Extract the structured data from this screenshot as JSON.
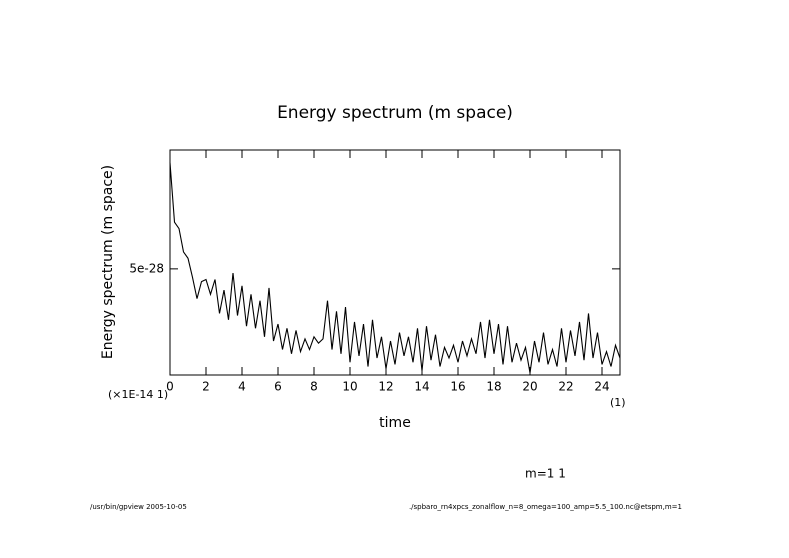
{
  "chart_data": {
    "type": "line",
    "title": "Energy spectrum (m space)",
    "y_label": "Energy spectrum (m space)",
    "x_label": "time",
    "x_scale_note": "(×1E-14 1)",
    "x_unit": "(1)",
    "annotation": "m=1 1",
    "footer_left": "/usr/bin/gpview  2005-10-05",
    "footer_right": "./spbaro_rn4xpcs_zonalflow_n=8_omega=100_amp=5.5_100.nc@etspm,m=1",
    "xlim": [
      0,
      25
    ],
    "ylim": [
      0,
      1.06e-27
    ],
    "xticks": [
      0,
      2,
      4,
      6,
      8,
      10,
      12,
      14,
      16,
      18,
      20,
      22,
      24
    ],
    "yticks": [
      {
        "value": 5e-28,
        "label": "5e-28"
      }
    ],
    "color": "#000000",
    "x": [
      0,
      0.25,
      0.5,
      0.75,
      1,
      1.25,
      1.5,
      1.75,
      2,
      2.25,
      2.5,
      2.75,
      3,
      3.25,
      3.5,
      3.75,
      4,
      4.25,
      4.5,
      4.75,
      5,
      5.25,
      5.5,
      5.75,
      6,
      6.25,
      6.5,
      6.75,
      7,
      7.25,
      7.5,
      7.75,
      8,
      8.25,
      8.5,
      8.75,
      9,
      9.25,
      9.5,
      9.75,
      10,
      10.25,
      10.5,
      10.75,
      11,
      11.25,
      11.5,
      11.75,
      12,
      12.25,
      12.5,
      12.75,
      13,
      13.25,
      13.5,
      13.75,
      14,
      14.25,
      14.5,
      14.75,
      15,
      15.25,
      15.5,
      15.75,
      16,
      16.25,
      16.5,
      16.75,
      17,
      17.25,
      17.5,
      17.75,
      18,
      18.25,
      18.5,
      18.75,
      19,
      19.25,
      19.5,
      19.75,
      20,
      20.25,
      20.5,
      20.75,
      21,
      21.25,
      21.5,
      21.75,
      22,
      22.25,
      22.5,
      22.75,
      23,
      23.25,
      23.5,
      23.75,
      24,
      24.25,
      24.5,
      24.75,
      25
    ],
    "values": [
      1e-27,
      7.2e-28,
      6.9e-28,
      5.8e-28,
      5.5e-28,
      4.6e-28,
      3.6e-28,
      4.4e-28,
      4.5e-28,
      3.8e-28,
      4.5e-28,
      2.9e-28,
      4e-28,
      2.6e-28,
      4.8e-28,
      2.8e-28,
      4.2e-28,
      2.3e-28,
      3.8e-28,
      2.2e-28,
      3.5e-28,
      1.8e-28,
      4.1e-28,
      1.6e-28,
      2.4e-28,
      1.2e-28,
      2.2e-28,
      1e-28,
      2.1e-28,
      1.1e-28,
      1.7e-28,
      1.2e-28,
      1.8e-28,
      1.5e-28,
      1.7e-28,
      3.5e-28,
      1.2e-28,
      3e-28,
      1e-28,
      3.2e-28,
      6e-29,
      2.5e-28,
      9e-29,
      2.4e-28,
      4e-29,
      2.6e-28,
      8e-29,
      1.8e-28,
      3e-29,
      1.6e-28,
      5e-29,
      2e-28,
      9e-29,
      1.8e-28,
      6e-29,
      2.2e-28,
      2e-29,
      2.3e-28,
      7e-29,
      1.9e-28,
      4e-29,
      1.3e-28,
      8e-29,
      1.4e-28,
      6e-29,
      1.6e-28,
      9e-29,
      1.7e-28,
      1e-28,
      2.5e-28,
      8e-29,
      2.6e-28,
      1e-28,
      2.4e-28,
      5e-29,
      2.3e-28,
      6e-29,
      1.5e-28,
      7e-29,
      1.3e-28,
      1e-29,
      1.6e-28,
      6e-29,
      2e-28,
      5e-29,
      1.2e-28,
      4e-29,
      2.2e-28,
      6e-29,
      2.1e-28,
      9e-29,
      2.5e-28,
      7e-29,
      2.9e-28,
      8e-29,
      2e-28,
      5e-29,
      1.1e-28,
      4e-29,
      1.4e-28,
      8e-29
    ]
  }
}
